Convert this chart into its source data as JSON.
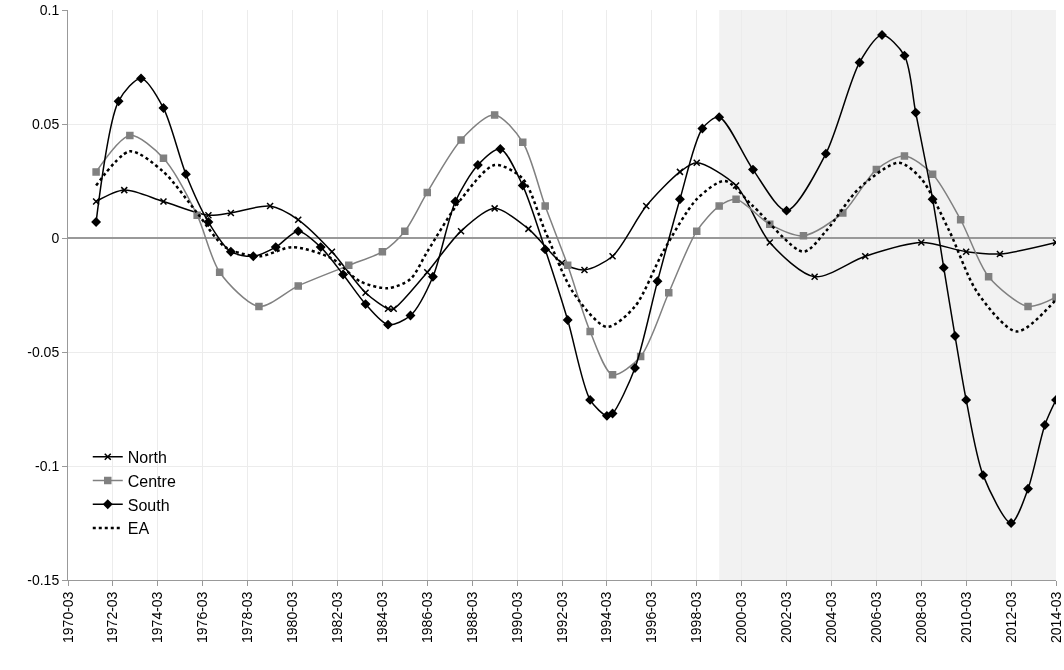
{
  "chart_data": {
    "type": "line",
    "xlim": [
      "1970-03",
      "2014-03"
    ],
    "xticks": [
      "1970-03",
      "1972-03",
      "1974-03",
      "1976-03",
      "1978-03",
      "1980-03",
      "1982-03",
      "1984-03",
      "1986-03",
      "1988-03",
      "1990-03",
      "1992-03",
      "1994-03",
      "1996-03",
      "1998-03",
      "2000-03",
      "2002-03",
      "2004-03",
      "2006-03",
      "2008-03",
      "2010-03",
      "2012-03",
      "2014-03"
    ],
    "ylim": [
      -0.15,
      0.1
    ],
    "yticks": [
      -0.15,
      -0.1,
      -0.05,
      0,
      0.05,
      0.1
    ],
    "grid": true,
    "legend": "bottom left",
    "bands": [
      {
        "axis": "x",
        "from": "1999-03",
        "to": "2014-03",
        "color": "#f2f2f2"
      }
    ],
    "series": [
      {
        "name": "North",
        "color": "#000000",
        "marker": "cross",
        "line_style": "solid",
        "x": [
          "1971-06",
          "1972-09",
          "1974-06",
          "1976-06",
          "1977-06",
          "1979-03",
          "1980-06",
          "1981-12",
          "1983-06",
          "1984-06",
          "1984-09",
          "1986-03",
          "1987-09",
          "1989-03",
          "1990-09",
          "1992-03",
          "1993-03",
          "1994-06",
          "1995-12",
          "1997-06",
          "1998-03",
          "1999-12",
          "2001-06",
          "2003-06",
          "2005-09",
          "2008-03",
          "2010-03",
          "2011-09",
          "2014-03"
        ],
        "values": [
          0.016,
          0.021,
          0.016,
          0.01,
          0.011,
          0.014,
          0.008,
          -0.006,
          -0.024,
          -0.031,
          -0.031,
          -0.015,
          0.003,
          0.013,
          0.004,
          -0.011,
          -0.014,
          -0.008,
          0.014,
          0.029,
          0.033,
          0.023,
          -0.002,
          -0.017,
          -0.008,
          -0.002,
          -0.006,
          -0.007,
          -0.002
        ]
      },
      {
        "name": "Centre",
        "color": "#808080",
        "marker": "square",
        "line_style": "solid",
        "x": [
          "1971-06",
          "1972-12",
          "1974-06",
          "1975-12",
          "1976-12",
          "1978-09",
          "1980-06",
          "1982-09",
          "1984-03",
          "1985-03",
          "1986-03",
          "1987-09",
          "1989-03",
          "1990-06",
          "1991-06",
          "1992-06",
          "1993-06",
          "1994-06",
          "1995-09",
          "1996-12",
          "1998-03",
          "1999-03",
          "1999-12",
          "2001-06",
          "2002-12",
          "2004-09",
          "2006-03",
          "2007-06",
          "2008-09",
          "2009-12",
          "2011-03",
          "2012-12",
          "2014-03"
        ],
        "values": [
          0.029,
          0.045,
          0.035,
          0.01,
          -0.015,
          -0.03,
          -0.021,
          -0.012,
          -0.006,
          0.003,
          0.02,
          0.043,
          0.054,
          0.042,
          0.014,
          -0.012,
          -0.041,
          -0.06,
          -0.052,
          -0.024,
          0.003,
          0.014,
          0.017,
          0.006,
          0.001,
          0.011,
          0.03,
          0.036,
          0.028,
          0.008,
          -0.017,
          -0.03,
          -0.026
        ]
      },
      {
        "name": "South",
        "color": "#000000",
        "marker": "diamond",
        "line_style": "solid",
        "x": [
          "1971-06",
          "1972-06",
          "1973-06",
          "1974-06",
          "1975-06",
          "1976-06",
          "1977-06",
          "1978-06",
          "1979-06",
          "1980-06",
          "1981-06",
          "1982-06",
          "1983-06",
          "1984-06",
          "1985-06",
          "1986-06",
          "1987-06",
          "1988-06",
          "1989-06",
          "1990-06",
          "1991-06",
          "1992-06",
          "1993-06",
          "1994-03",
          "1994-06",
          "1995-06",
          "1996-06",
          "1997-06",
          "1998-06",
          "1999-03",
          "2000-09",
          "2002-03",
          "2003-12",
          "2005-06",
          "2006-06",
          "2007-06",
          "2007-12",
          "2008-09",
          "2009-03",
          "2009-09",
          "2010-03",
          "2010-12",
          "2012-03",
          "2012-12",
          "2013-09",
          "2014-03"
        ],
        "values": [
          0.007,
          0.06,
          0.07,
          0.057,
          0.028,
          0.007,
          -0.006,
          -0.008,
          -0.004,
          0.003,
          -0.004,
          -0.016,
          -0.029,
          -0.038,
          -0.034,
          -0.017,
          0.016,
          0.032,
          0.039,
          0.023,
          -0.005,
          -0.036,
          -0.071,
          -0.078,
          -0.077,
          -0.057,
          -0.019,
          0.017,
          0.048,
          0.053,
          0.03,
          0.012,
          0.037,
          0.077,
          0.089,
          0.08,
          0.055,
          0.017,
          -0.013,
          -0.043,
          -0.071,
          -0.104,
          -0.125,
          -0.11,
          -0.082,
          -0.071
        ]
      },
      {
        "name": "EA",
        "color": "#000000",
        "marker": "none",
        "line_style": "dotted",
        "x": [
          "1971-06",
          "1972-12",
          "1974-06",
          "1975-12",
          "1977-03",
          "1978-09",
          "1980-03",
          "1981-12",
          "1983-03",
          "1984-06",
          "1985-06",
          "1986-03",
          "1987-09",
          "1989-03",
          "1990-06",
          "1991-06",
          "1992-09",
          "1994-03",
          "1995-06",
          "1996-09",
          "1998-03",
          "1999-06",
          "2000-09",
          "2002-12",
          "2003-12",
          "2005-06",
          "2007-03",
          "2008-03",
          "2009-06",
          "2010-09",
          "2012-06",
          "2014-03"
        ],
        "values": [
          0.023,
          0.038,
          0.029,
          0.011,
          -0.004,
          -0.008,
          -0.004,
          -0.009,
          -0.019,
          -0.022,
          -0.018,
          -0.006,
          0.017,
          0.032,
          0.026,
          0.003,
          -0.024,
          -0.039,
          -0.03,
          -0.006,
          0.017,
          0.025,
          0.014,
          -0.006,
          0.003,
          0.022,
          0.033,
          0.026,
          0.003,
          -0.024,
          -0.041,
          -0.027
        ]
      }
    ]
  }
}
